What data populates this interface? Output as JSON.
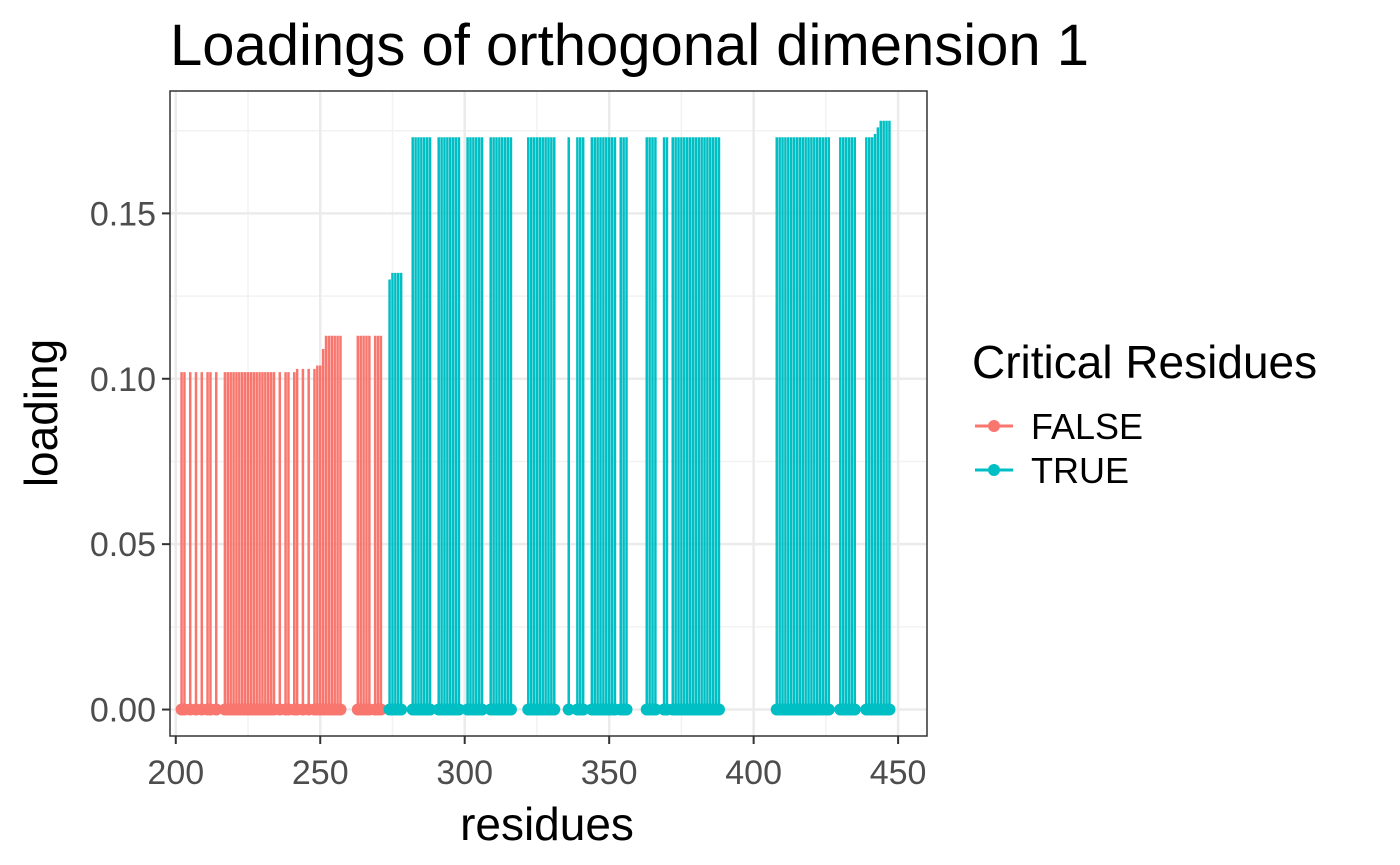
{
  "chart_data": {
    "type": "line",
    "title": "Loadings of orthogonal dimension 1",
    "xlabel": "residues",
    "ylabel": "loading",
    "xlim": [
      198,
      460
    ],
    "ylim": [
      -0.008,
      0.187
    ],
    "x_ticks": [
      200,
      250,
      300,
      350,
      400,
      450
    ],
    "x_tick_labels": [
      "200",
      "250",
      "300",
      "350",
      "400",
      "450"
    ],
    "y_ticks": [
      0.0,
      0.05,
      0.1,
      0.15
    ],
    "y_tick_labels": [
      "0.00",
      "0.05",
      "0.10",
      "0.15"
    ],
    "grid": true,
    "legend": {
      "title": "Critical Residues",
      "placement": "right"
    },
    "series": [
      {
        "name": "FALSE",
        "color": "#F8766D",
        "points": [
          [
            202,
            0.102
          ],
          [
            203,
            0.102
          ],
          [
            205,
            0.102
          ],
          [
            207,
            0.102
          ],
          [
            209,
            0.102
          ],
          [
            211,
            0.102
          ],
          [
            212,
            0.102
          ],
          [
            214,
            0.102
          ],
          [
            217,
            0.102
          ],
          [
            218,
            0.102
          ],
          [
            219,
            0.102
          ],
          [
            220,
            0.102
          ],
          [
            221,
            0.102
          ],
          [
            222,
            0.102
          ],
          [
            223,
            0.102
          ],
          [
            224,
            0.102
          ],
          [
            225,
            0.102
          ],
          [
            226,
            0.102
          ],
          [
            227,
            0.102
          ],
          [
            228,
            0.102
          ],
          [
            229,
            0.102
          ],
          [
            230,
            0.102
          ],
          [
            231,
            0.102
          ],
          [
            232,
            0.102
          ],
          [
            233,
            0.102
          ],
          [
            234,
            0.102
          ],
          [
            236,
            0.102
          ],
          [
            238,
            0.102
          ],
          [
            239,
            0.102
          ],
          [
            241,
            0.102
          ],
          [
            242,
            0.103
          ],
          [
            244,
            0.103
          ],
          [
            246,
            0.103
          ],
          [
            248,
            0.103
          ],
          [
            249,
            0.104
          ],
          [
            250,
            0.104
          ],
          [
            251,
            0.109
          ],
          [
            252,
            0.113
          ],
          [
            253,
            0.113
          ],
          [
            254,
            0.113
          ],
          [
            255,
            0.113
          ],
          [
            256,
            0.113
          ],
          [
            257,
            0.113
          ],
          [
            263,
            0.113
          ],
          [
            264,
            0.113
          ],
          [
            265,
            0.113
          ],
          [
            266,
            0.113
          ],
          [
            267,
            0.113
          ],
          [
            269,
            0.113
          ],
          [
            270,
            0.113
          ],
          [
            271,
            0.113
          ]
        ]
      },
      {
        "name": "TRUE",
        "color": "#00BFC4",
        "points": [
          [
            274,
            0.13
          ],
          [
            275,
            0.132
          ],
          [
            276,
            0.132
          ],
          [
            277,
            0.132
          ],
          [
            278,
            0.132
          ],
          [
            282,
            0.173
          ],
          [
            283,
            0.173
          ],
          [
            284,
            0.173
          ],
          [
            285,
            0.173
          ],
          [
            286,
            0.173
          ],
          [
            287,
            0.173
          ],
          [
            288,
            0.173
          ],
          [
            291,
            0.173
          ],
          [
            292,
            0.173
          ],
          [
            293,
            0.173
          ],
          [
            294,
            0.173
          ],
          [
            295,
            0.173
          ],
          [
            296,
            0.173
          ],
          [
            297,
            0.173
          ],
          [
            298,
            0.173
          ],
          [
            301,
            0.173
          ],
          [
            302,
            0.173
          ],
          [
            303,
            0.173
          ],
          [
            304,
            0.173
          ],
          [
            305,
            0.173
          ],
          [
            306,
            0.173
          ],
          [
            309,
            0.173
          ],
          [
            310,
            0.173
          ],
          [
            311,
            0.173
          ],
          [
            312,
            0.173
          ],
          [
            313,
            0.173
          ],
          [
            314,
            0.173
          ],
          [
            315,
            0.173
          ],
          [
            316,
            0.173
          ],
          [
            322,
            0.173
          ],
          [
            323,
            0.173
          ],
          [
            324,
            0.173
          ],
          [
            325,
            0.173
          ],
          [
            326,
            0.173
          ],
          [
            327,
            0.173
          ],
          [
            328,
            0.173
          ],
          [
            329,
            0.173
          ],
          [
            330,
            0.173
          ],
          [
            331,
            0.173
          ],
          [
            336,
            0.173
          ],
          [
            339,
            0.173
          ],
          [
            340,
            0.173
          ],
          [
            341,
            0.173
          ],
          [
            344,
            0.173
          ],
          [
            345,
            0.173
          ],
          [
            346,
            0.173
          ],
          [
            347,
            0.173
          ],
          [
            348,
            0.173
          ],
          [
            349,
            0.173
          ],
          [
            350,
            0.173
          ],
          [
            351,
            0.173
          ],
          [
            352,
            0.173
          ],
          [
            354,
            0.173
          ],
          [
            355,
            0.173
          ],
          [
            356,
            0.173
          ],
          [
            363,
            0.173
          ],
          [
            364,
            0.173
          ],
          [
            365,
            0.173
          ],
          [
            366,
            0.173
          ],
          [
            369,
            0.173
          ],
          [
            370,
            0.173
          ],
          [
            372,
            0.173
          ],
          [
            373,
            0.173
          ],
          [
            374,
            0.173
          ],
          [
            375,
            0.173
          ],
          [
            376,
            0.173
          ],
          [
            377,
            0.173
          ],
          [
            378,
            0.173
          ],
          [
            379,
            0.173
          ],
          [
            380,
            0.173
          ],
          [
            381,
            0.173
          ],
          [
            382,
            0.173
          ],
          [
            383,
            0.173
          ],
          [
            384,
            0.173
          ],
          [
            385,
            0.173
          ],
          [
            386,
            0.173
          ],
          [
            387,
            0.173
          ],
          [
            388,
            0.173
          ],
          [
            408,
            0.173
          ],
          [
            409,
            0.173
          ],
          [
            410,
            0.173
          ],
          [
            411,
            0.173
          ],
          [
            412,
            0.173
          ],
          [
            413,
            0.173
          ],
          [
            414,
            0.173
          ],
          [
            415,
            0.173
          ],
          [
            416,
            0.173
          ],
          [
            417,
            0.173
          ],
          [
            418,
            0.173
          ],
          [
            419,
            0.173
          ],
          [
            420,
            0.173
          ],
          [
            421,
            0.173
          ],
          [
            422,
            0.173
          ],
          [
            423,
            0.173
          ],
          [
            424,
            0.173
          ],
          [
            425,
            0.173
          ],
          [
            426,
            0.173
          ],
          [
            430,
            0.173
          ],
          [
            431,
            0.173
          ],
          [
            432,
            0.173
          ],
          [
            433,
            0.173
          ],
          [
            434,
            0.173
          ],
          [
            435,
            0.173
          ],
          [
            439,
            0.173
          ],
          [
            440,
            0.173
          ],
          [
            441,
            0.173
          ],
          [
            442,
            0.174
          ],
          [
            443,
            0.176
          ],
          [
            444,
            0.178
          ],
          [
            445,
            0.178
          ],
          [
            446,
            0.178
          ],
          [
            447,
            0.178
          ]
        ]
      }
    ]
  }
}
